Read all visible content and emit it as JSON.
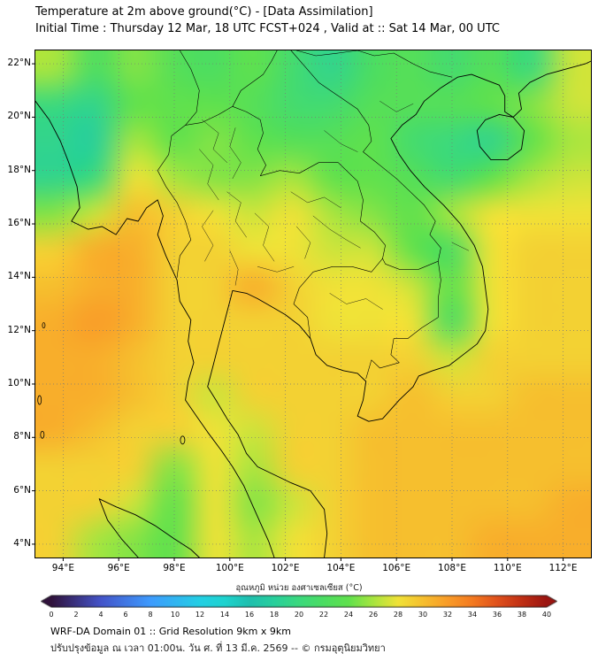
{
  "header": {
    "title": "Temperature at 2m above ground(°C) - [Data Assimilation]",
    "subtitle": "Initial Time : Thursday 12 Mar, 18 UTC FCST+024 , Valid at :: Sat 14 Mar, 00 UTC"
  },
  "map": {
    "x_tick_labels": [
      "94°E",
      "96°E",
      "98°E",
      "100°E",
      "102°E",
      "104°E",
      "106°E",
      "108°E",
      "110°E",
      "112°E"
    ],
    "x_tick_values": [
      94,
      96,
      98,
      100,
      102,
      104,
      106,
      108,
      110,
      112
    ],
    "y_tick_labels": [
      "22°N",
      "20°N",
      "18°N",
      "16°N",
      "14°N",
      "12°N",
      "10°N",
      "8°N",
      "6°N",
      "4°N"
    ],
    "y_tick_values": [
      22,
      20,
      18,
      16,
      14,
      12,
      10,
      8,
      6,
      4
    ],
    "lon_range": [
      93,
      113
    ],
    "lat_range": [
      3.5,
      22.5
    ]
  },
  "colorbar": {
    "title": "อุณหภูมิ หน่วย องศาเซลเซียส (°C)",
    "min": 0,
    "max": 40,
    "step": 2,
    "tick_labels": [
      "0",
      "2",
      "4",
      "6",
      "8",
      "10",
      "12",
      "14",
      "16",
      "18",
      "20",
      "22",
      "24",
      "26",
      "28",
      "30",
      "32",
      "34",
      "36",
      "38",
      "40"
    ],
    "stops": [
      {
        "value": 0,
        "color": "#30123b"
      },
      {
        "value": 4,
        "color": "#4454c9"
      },
      {
        "value": 8,
        "color": "#3e9bfe"
      },
      {
        "value": 12,
        "color": "#23cfe4"
      },
      {
        "value": 14,
        "color": "#1ed3cf"
      },
      {
        "value": 16,
        "color": "#1fbfae"
      },
      {
        "value": 18,
        "color": "#28cf9c"
      },
      {
        "value": 20,
        "color": "#3bd97e"
      },
      {
        "value": 22,
        "color": "#4cdd62"
      },
      {
        "value": 24,
        "color": "#60e14d"
      },
      {
        "value": 26,
        "color": "#a8e53f"
      },
      {
        "value": 28,
        "color": "#f0e237"
      },
      {
        "value": 30,
        "color": "#f6bf2e"
      },
      {
        "value": 32,
        "color": "#f99c28"
      },
      {
        "value": 34,
        "color": "#f47a20"
      },
      {
        "value": 36,
        "color": "#e0511c"
      },
      {
        "value": 38,
        "color": "#c02f14"
      },
      {
        "value": 40,
        "color": "#9b1511"
      }
    ]
  },
  "chart_data": {
    "type": "heatmap",
    "title": "Temperature at 2m above ground (°C), WRF-DA Domain 01, valid Sat 14 Mar 00 UTC",
    "unit": "°C",
    "value_range": [
      0,
      40
    ],
    "lon": [
      93.0,
      94.54,
      96.08,
      97.62,
      99.15,
      100.69,
      102.23,
      103.77,
      105.31,
      106.85,
      108.38,
      109.92,
      111.46,
      113.0
    ],
    "lat": [
      22.5,
      21.04,
      19.58,
      18.12,
      16.65,
      15.19,
      13.73,
      12.27,
      10.81,
      9.35,
      7.88,
      6.42,
      4.96,
      3.5
    ],
    "temperature": [
      [
        26,
        22,
        25,
        23,
        22,
        24,
        21,
        19,
        22,
        23,
        21,
        23,
        20,
        27
      ],
      [
        20,
        19,
        24,
        24,
        24,
        23,
        21,
        21,
        23,
        23,
        23,
        24,
        25,
        27
      ],
      [
        19,
        18,
        26,
        24,
        25,
        24,
        23,
        23,
        24,
        21,
        20,
        19,
        24,
        26
      ],
      [
        19,
        20,
        28,
        26,
        25,
        25,
        26,
        24,
        24,
        23,
        21,
        24,
        26,
        27
      ],
      [
        25,
        27,
        30,
        29,
        28,
        27,
        28,
        26,
        25,
        24,
        26,
        28,
        28,
        28
      ],
      [
        29,
        31,
        31,
        29,
        29,
        28,
        28,
        27,
        27,
        24,
        22,
        28,
        29,
        29
      ],
      [
        30,
        31,
        31,
        29,
        29,
        31,
        29,
        28,
        28,
        27,
        24,
        28,
        29,
        29
      ],
      [
        31,
        32,
        31,
        29,
        29,
        29,
        29,
        28,
        28,
        28,
        22,
        28,
        29,
        29
      ],
      [
        31,
        31,
        30,
        29,
        29,
        29,
        29,
        29,
        29,
        29,
        27,
        29,
        29,
        29
      ],
      [
        31,
        31,
        30,
        29,
        27,
        29,
        29,
        29,
        29,
        30,
        29,
        29,
        30,
        30
      ],
      [
        31,
        30,
        29,
        29,
        28,
        27,
        29,
        29,
        30,
        30,
        30,
        30,
        30,
        30
      ],
      [
        29,
        29,
        29,
        25,
        28,
        26,
        29,
        29,
        30,
        30,
        30,
        30,
        30,
        30
      ],
      [
        29,
        29,
        27,
        24,
        28,
        25,
        27,
        29,
        30,
        30,
        30,
        30,
        30,
        31
      ],
      [
        29,
        26,
        25,
        24,
        28,
        26,
        28,
        29,
        30,
        30,
        30,
        31,
        31,
        31
      ]
    ]
  },
  "footer": {
    "line1": "WRF-DA Domain 01 :: Grid Resolution 9km x 9km",
    "line2": "ปรับปรุงข้อมูล ณ เวลา 01:00น. วัน ศ. ที่ 13 มี.ค. 2569 -- © กรมอุตุนิยมวิทยา"
  }
}
